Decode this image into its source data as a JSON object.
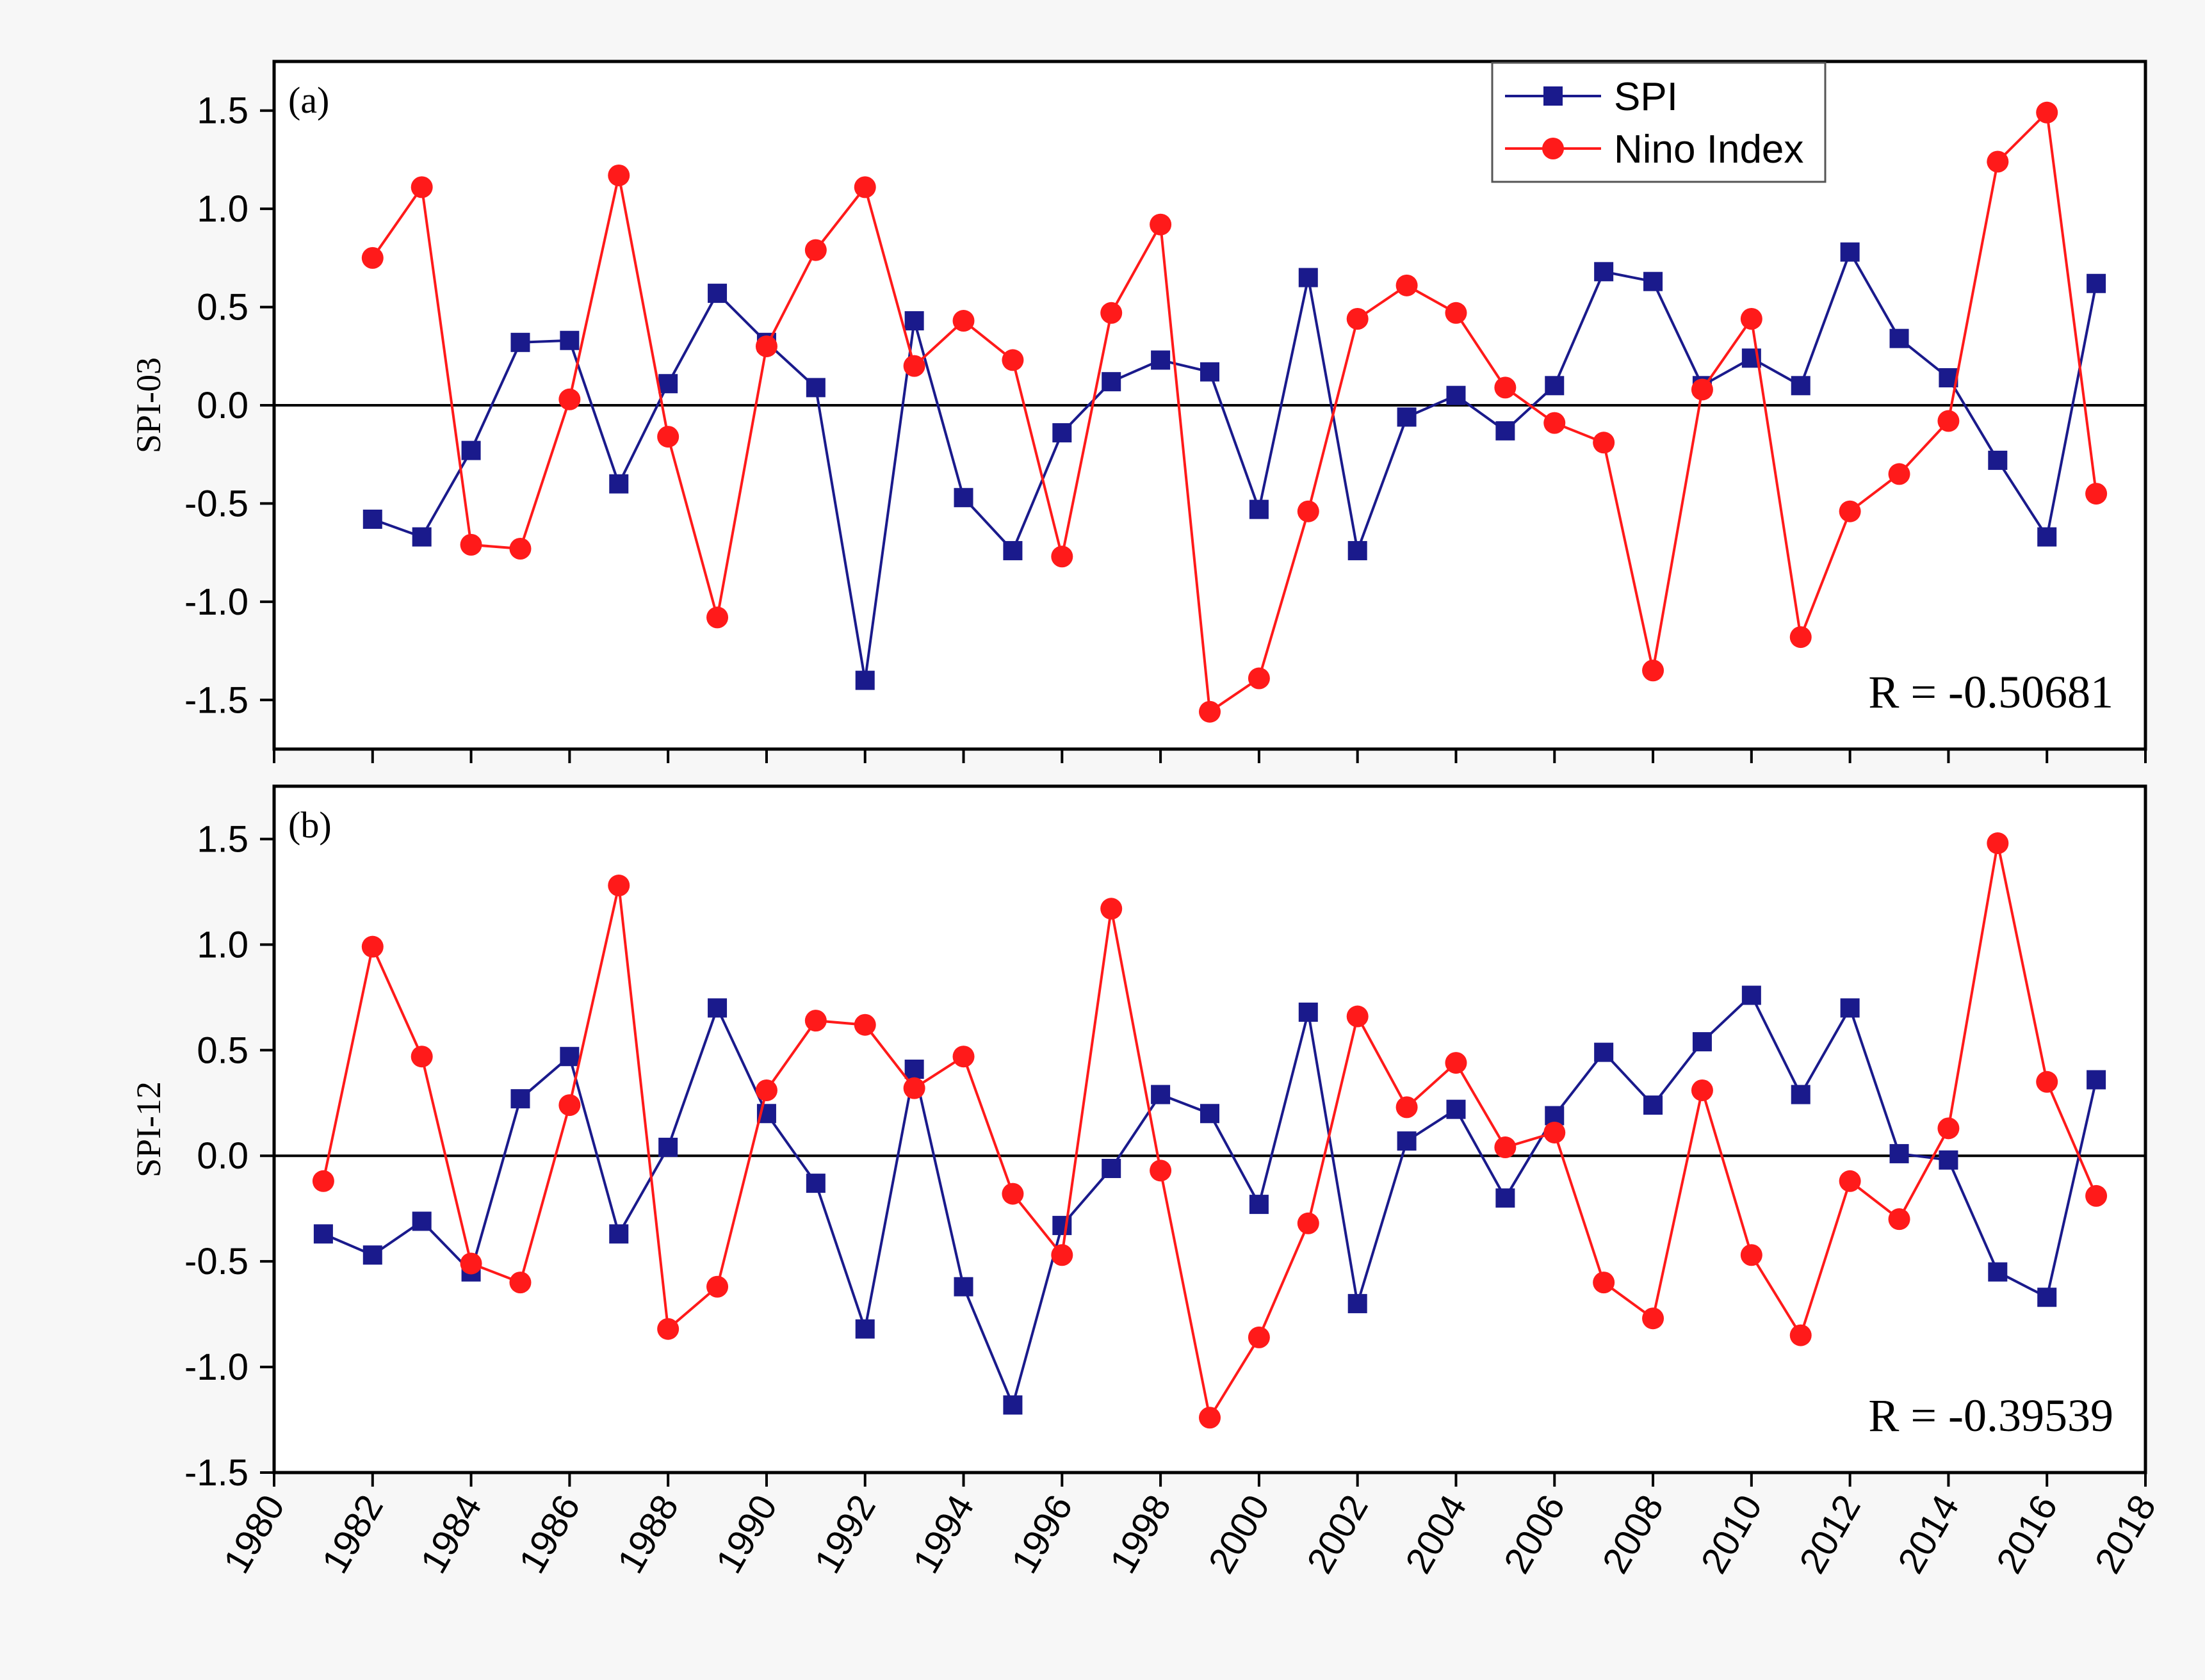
{
  "colors": {
    "spi": "#1a1a8c",
    "nino": "#ff1a1a",
    "axis": "#000000"
  },
  "legend": {
    "spi_label": "SPI",
    "nino_label": "Nino Index",
    "placement": "top-right of panel (a)"
  },
  "x_axis": {
    "ticks": [
      "1980",
      "1982",
      "1984",
      "1986",
      "1988",
      "1990",
      "1992",
      "1994",
      "1996",
      "1998",
      "2000",
      "2002",
      "2004",
      "2006",
      "2008",
      "2010",
      "2012",
      "2014",
      "2016",
      "2018"
    ],
    "range": [
      1980,
      2018
    ]
  },
  "chart_data": [
    {
      "type": "line",
      "panel_label": "(a)",
      "ylabel": "SPI-03",
      "ylim": [
        -1.75,
        1.75
      ],
      "yticks": [
        "1.5",
        "1.0",
        "0.5",
        "0.0",
        "-0.5",
        "-1.0",
        "-1.5"
      ],
      "ytick_values": [
        1.5,
        1.0,
        0.5,
        0.0,
        -0.5,
        -1.0,
        -1.5
      ],
      "annotation": "R = -0.50681",
      "series": [
        {
          "name": "SPI",
          "x": [
            1982,
            1983,
            1984,
            1985,
            1986,
            1987,
            1988,
            1989,
            1990,
            1991,
            1992,
            1993,
            1994,
            1995,
            1996,
            1997,
            1998,
            1999,
            2000,
            2001,
            2002,
            2003,
            2004,
            2005,
            2006,
            2007,
            2008,
            2009,
            2010,
            2011,
            2012,
            2013,
            2014,
            2015,
            2016,
            2017
          ],
          "values": [
            -0.58,
            -0.67,
            -0.23,
            0.32,
            0.33,
            -0.4,
            0.11,
            0.57,
            0.32,
            0.09,
            -1.4,
            0.43,
            -0.47,
            -0.74,
            -0.14,
            0.12,
            0.23,
            0.17,
            -0.53,
            0.65,
            -0.74,
            -0.06,
            0.05,
            -0.13,
            0.1,
            0.68,
            0.63,
            0.1,
            0.24,
            0.1,
            0.78,
            0.34,
            0.14,
            -0.28,
            -0.67,
            0.62
          ]
        },
        {
          "name": "Nino Index",
          "x": [
            1982,
            1983,
            1984,
            1985,
            1986,
            1987,
            1988,
            1989,
            1990,
            1991,
            1992,
            1993,
            1994,
            1995,
            1996,
            1997,
            1998,
            1999,
            2000,
            2001,
            2002,
            2003,
            2004,
            2005,
            2006,
            2007,
            2008,
            2009,
            2010,
            2011,
            2012,
            2013,
            2014,
            2015,
            2016,
            2017
          ],
          "values": [
            0.75,
            1.11,
            -0.71,
            -0.73,
            0.03,
            1.17,
            -0.16,
            -1.08,
            0.3,
            0.79,
            1.11,
            0.2,
            0.43,
            0.23,
            -0.77,
            0.47,
            0.92,
            -1.56,
            -1.39,
            -0.54,
            0.44,
            0.61,
            0.47,
            0.09,
            -0.09,
            -0.19,
            -1.35,
            0.08,
            0.44,
            -1.18,
            -0.54,
            -0.35,
            -0.08,
            1.24,
            1.49,
            -0.45
          ]
        }
      ]
    },
    {
      "type": "line",
      "panel_label": "(b)",
      "ylabel": "SPI-12",
      "ylim": [
        -1.5,
        1.75
      ],
      "yticks": [
        "1.5",
        "1.0",
        "0.5",
        "0.0",
        "-0.5",
        "-1.0",
        "-1.5"
      ],
      "ytick_values": [
        1.5,
        1.0,
        0.5,
        0.0,
        -0.5,
        -1.0,
        -1.5
      ],
      "annotation": "R = -0.39539",
      "series": [
        {
          "name": "SPI",
          "x": [
            1981,
            1982,
            1983,
            1984,
            1985,
            1986,
            1987,
            1988,
            1989,
            1990,
            1991,
            1992,
            1993,
            1994,
            1995,
            1996,
            1997,
            1998,
            1999,
            2000,
            2001,
            2002,
            2003,
            2004,
            2005,
            2006,
            2007,
            2008,
            2009,
            2010,
            2011,
            2012,
            2013,
            2014,
            2015,
            2016,
            2017
          ],
          "values": [
            -0.37,
            -0.47,
            -0.31,
            -0.55,
            0.27,
            0.47,
            -0.37,
            0.04,
            0.7,
            0.2,
            -0.13,
            -0.82,
            0.41,
            -0.62,
            -1.18,
            -0.33,
            -0.06,
            0.29,
            0.2,
            -0.23,
            0.68,
            -0.7,
            0.07,
            0.22,
            -0.2,
            0.19,
            0.49,
            0.24,
            0.54,
            0.76,
            0.29,
            0.7,
            0.01,
            -0.02,
            -0.55,
            -0.67,
            0.36
          ]
        },
        {
          "name": "Nino Index",
          "x": [
            1981,
            1982,
            1983,
            1984,
            1985,
            1986,
            1987,
            1988,
            1989,
            1990,
            1991,
            1992,
            1993,
            1994,
            1995,
            1996,
            1997,
            1998,
            1999,
            2000,
            2001,
            2002,
            2003,
            2004,
            2005,
            2006,
            2007,
            2008,
            2009,
            2010,
            2011,
            2012,
            2013,
            2014,
            2015,
            2016,
            2017
          ],
          "values": [
            -0.12,
            0.99,
            0.47,
            -0.51,
            -0.6,
            0.24,
            1.28,
            -0.82,
            -0.62,
            0.31,
            0.64,
            0.62,
            0.32,
            0.47,
            -0.18,
            -0.47,
            1.17,
            -0.07,
            -1.24,
            -0.86,
            -0.32,
            0.66,
            0.23,
            0.44,
            0.04,
            0.11,
            -0.6,
            -0.77,
            0.31,
            -0.47,
            -0.85,
            -0.12,
            -0.3,
            0.13,
            1.48,
            0.35,
            -0.19
          ]
        }
      ]
    }
  ]
}
